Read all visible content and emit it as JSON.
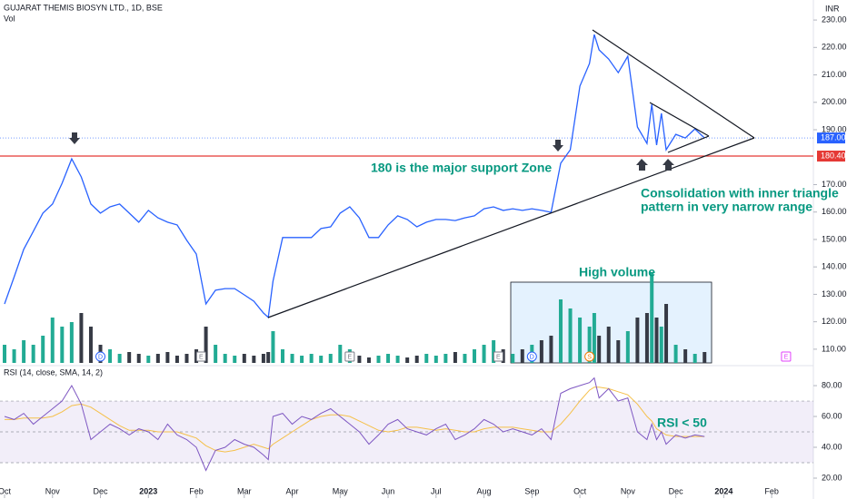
{
  "chart_data": {
    "type": "line",
    "title": "GUJARAT THEMIS BIOSYN LTD., 1D, BSE",
    "volume_label": "Vol",
    "currency": "INR",
    "x": [
      0,
      0.2,
      0.4,
      0.6,
      0.8,
      1.0,
      1.2,
      1.4,
      1.6,
      1.8,
      2.0,
      2.2,
      2.4,
      2.6,
      2.8,
      3.0,
      3.2,
      3.4,
      3.6,
      3.8,
      4.0,
      4.2,
      4.4,
      4.6,
      4.8,
      5.0,
      5.2,
      5.4,
      5.5,
      5.6,
      5.8,
      6.0,
      6.2,
      6.4,
      6.6,
      6.8,
      7.0,
      7.2,
      7.4,
      7.6,
      7.8,
      8.0,
      8.2,
      8.4,
      8.6,
      8.8,
      9.0,
      9.2,
      9.4,
      9.6,
      9.8,
      10.0,
      10.2,
      10.4,
      10.6,
      10.8,
      11.0,
      11.2,
      11.4,
      11.6,
      11.8,
      12.0,
      12.2,
      12.3,
      12.4,
      12.6,
      12.8,
      13.0,
      13.2,
      13.4,
      13.5,
      13.6,
      13.7,
      13.8,
      14.0,
      14.2,
      14.4,
      14.6
    ],
    "xlim": [
      -0.095,
      16.87
    ],
    "xticks": [
      {
        "value": 0,
        "label": "Oct"
      },
      {
        "value": 1,
        "label": "Nov"
      },
      {
        "value": 2,
        "label": "Dec"
      },
      {
        "value": 3,
        "label": "2023"
      },
      {
        "value": 4,
        "label": "Feb"
      },
      {
        "value": 5,
        "label": "Mar"
      },
      {
        "value": 6,
        "label": "Apr"
      },
      {
        "value": 7,
        "label": "May"
      },
      {
        "value": 8,
        "label": "Jun"
      },
      {
        "value": 9,
        "label": "Jul"
      },
      {
        "value": 10,
        "label": "Aug"
      },
      {
        "value": 11,
        "label": "Sep"
      },
      {
        "value": 12,
        "label": "Oct"
      },
      {
        "value": 13,
        "label": "Nov"
      },
      {
        "value": 14,
        "label": "Dec"
      },
      {
        "value": 15,
        "label": "2024"
      },
      {
        "value": 16,
        "label": "Feb"
      }
    ],
    "ylim": [
      105,
      237.3
    ],
    "yticks": [
      {
        "value": 110,
        "label": "110.00"
      },
      {
        "value": 120,
        "label": "120.00"
      },
      {
        "value": 130,
        "label": "130.00"
      },
      {
        "value": 140,
        "label": "140.00"
      },
      {
        "value": 150,
        "label": "150.00"
      },
      {
        "value": 160,
        "label": "160.00"
      },
      {
        "value": 170,
        "label": "170.00"
      },
      {
        "value": 190,
        "label": "190.00"
      },
      {
        "value": 200,
        "label": "200.00"
      },
      {
        "value": 210,
        "label": "210.00"
      },
      {
        "value": 220,
        "label": "220.00"
      },
      {
        "value": 230,
        "label": "230.00"
      }
    ],
    "price": {
      "color": "#2962ff",
      "values": [
        126.5,
        136.4,
        146.4,
        153,
        159.6,
        162.9,
        170.5,
        179.4,
        172.8,
        162.9,
        159.6,
        161.9,
        162.9,
        159.6,
        156.3,
        160.6,
        157.9,
        156.3,
        155.3,
        149.7,
        144.7,
        126.5,
        131.5,
        132.1,
        132.1,
        129.8,
        127.5,
        123.2,
        121.6,
        134.8,
        150.7,
        150.7,
        150.7,
        150.7,
        154,
        154.6,
        159.6,
        161.9,
        157.9,
        150.7,
        150.7,
        155.3,
        158.6,
        157.3,
        154.6,
        156.3,
        157.3,
        157.3,
        156.9,
        157.9,
        158.6,
        161.2,
        161.9,
        160.6,
        161.2,
        160.6,
        161.2,
        160.6,
        159.9,
        177.8,
        182.7,
        205.9,
        214.1,
        224.7,
        219.1,
        215.8,
        210.8,
        216.8,
        191,
        185,
        199.3,
        184.4,
        196,
        182.7,
        188.3,
        187,
        190.3,
        187
      ]
    },
    "last_price": {
      "value": 187,
      "label": "187.00",
      "color": "#2962ff"
    },
    "support": {
      "value": 180.4,
      "label": "180.40",
      "color": "#e53935"
    },
    "volume": {
      "up_color": "#22ab94",
      "down_color": "#363a45",
      "vlim": [
        0,
        300
      ],
      "values": [
        60,
        45,
        75,
        60,
        90,
        150,
        120,
        135,
        165,
        120,
        60,
        45,
        30,
        36,
        30,
        24,
        30,
        36,
        24,
        30,
        45,
        120,
        60,
        30,
        24,
        30,
        24,
        30,
        36,
        105,
        45,
        30,
        24,
        30,
        24,
        30,
        60,
        45,
        24,
        18,
        24,
        30,
        24,
        18,
        24,
        30,
        24,
        30,
        36,
        30,
        45,
        60,
        75,
        45,
        30,
        45,
        60,
        75,
        90,
        210,
        180,
        150,
        120,
        165,
        90,
        120,
        75,
        105,
        150,
        165,
        300,
        150,
        120,
        195,
        60,
        45,
        30,
        36
      ]
    },
    "rsi": {
      "label": "RSI (14, close, SMA, 14, 2)",
      "color": "#7e57c2",
      "sma_color": "#f5c04a",
      "ylim": [
        9.4,
        91.8
      ],
      "yticks": [
        {
          "value": 80,
          "label": "80.00"
        },
        {
          "value": 60,
          "label": "60.00"
        },
        {
          "value": 40,
          "label": "40.00"
        },
        {
          "value": 20,
          "label": "20.00"
        }
      ],
      "levels": [
        70,
        50,
        30
      ],
      "values": [
        60,
        58,
        62,
        55,
        60,
        65,
        70,
        80,
        68,
        45,
        50,
        55,
        52,
        48,
        52,
        50,
        45,
        55,
        48,
        45,
        40,
        25,
        38,
        40,
        45,
        42,
        40,
        35,
        32,
        60,
        62,
        55,
        60,
        58,
        62,
        65,
        60,
        55,
        50,
        42,
        48,
        55,
        58,
        52,
        50,
        48,
        52,
        55,
        45,
        48,
        52,
        58,
        55,
        50,
        52,
        50,
        48,
        52,
        45,
        75,
        78,
        80,
        82,
        85,
        72,
        78,
        70,
        72,
        50,
        45,
        55,
        45,
        50,
        42,
        48,
        46,
        48,
        47
      ],
      "sma_values": [
        58,
        58,
        59,
        59,
        59,
        60,
        63,
        67,
        68,
        66,
        62,
        58,
        54,
        51,
        51,
        51,
        50,
        50,
        50,
        48,
        46,
        41,
        38,
        37,
        38,
        40,
        42,
        40,
        39,
        42,
        46,
        50,
        54,
        58,
        60,
        61,
        61,
        60,
        57,
        54,
        51,
        50,
        51,
        53,
        53,
        52,
        51,
        52,
        51,
        50,
        50,
        52,
        53,
        53,
        53,
        52,
        51,
        50,
        50,
        55,
        62,
        70,
        77,
        79,
        79,
        78,
        76,
        74,
        68,
        60,
        57,
        52,
        50,
        48,
        47,
        47,
        47,
        47
      ]
    },
    "events": [
      {
        "x": 2.0,
        "label": "D",
        "color": "#2962ff"
      },
      {
        "x": 4.1,
        "label": "E",
        "color": "#787b86"
      },
      {
        "x": 7.2,
        "label": "E",
        "color": "#787b86"
      },
      {
        "x": 10.3,
        "label": "E",
        "color": "#787b86"
      },
      {
        "x": 11.0,
        "label": "D",
        "color": "#2962ff"
      },
      {
        "x": 12.2,
        "label": "S",
        "color": "#f57c00"
      },
      {
        "x": 16.3,
        "label": "E",
        "color": "#e040fb"
      }
    ],
    "annotations": {
      "support_text": "180 is the major support Zone",
      "consolidation": [
        "Consolidation with inner triangle",
        "pattern in very narrow range"
      ],
      "high_volume": "High volume",
      "rsi_note": "RSI < 50"
    }
  }
}
